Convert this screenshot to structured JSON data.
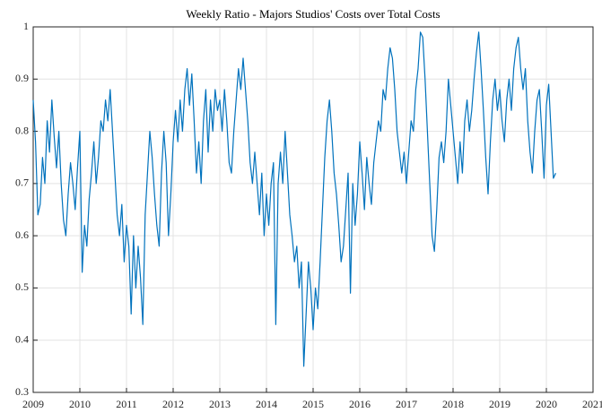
{
  "chart_data": {
    "type": "line",
    "title": "Weekly Ratio - Majors Studios' Costs over Total Costs",
    "x": [
      2009,
      2009.05,
      2009.1,
      2009.15,
      2009.2,
      2009.25,
      2009.3,
      2009.35,
      2009.4,
      2009.45,
      2009.5,
      2009.55,
      2009.6,
      2009.65,
      2009.7,
      2009.75,
      2009.8,
      2009.85,
      2009.9,
      2009.95,
      2010,
      2010.05,
      2010.1,
      2010.15,
      2010.2,
      2010.25,
      2010.3,
      2010.35,
      2010.4,
      2010.45,
      2010.5,
      2010.55,
      2010.6,
      2010.65,
      2010.7,
      2010.75,
      2010.8,
      2010.85,
      2010.9,
      2010.95,
      2011,
      2011.05,
      2011.1,
      2011.15,
      2011.2,
      2011.25,
      2011.3,
      2011.35,
      2011.4,
      2011.45,
      2011.5,
      2011.55,
      2011.6,
      2011.65,
      2011.7,
      2011.75,
      2011.8,
      2011.85,
      2011.9,
      2011.95,
      2012,
      2012.05,
      2012.1,
      2012.15,
      2012.2,
      2012.25,
      2012.3,
      2012.35,
      2012.4,
      2012.45,
      2012.5,
      2012.55,
      2012.6,
      2012.65,
      2012.7,
      2012.75,
      2012.8,
      2012.85,
      2012.9,
      2012.95,
      2013,
      2013.05,
      2013.1,
      2013.15,
      2013.2,
      2013.25,
      2013.3,
      2013.35,
      2013.4,
      2013.45,
      2013.5,
      2013.55,
      2013.6,
      2013.65,
      2013.7,
      2013.75,
      2013.8,
      2013.85,
      2013.9,
      2013.95,
      2014,
      2014.05,
      2014.1,
      2014.15,
      2014.2,
      2014.25,
      2014.3,
      2014.35,
      2014.4,
      2014.45,
      2014.5,
      2014.55,
      2014.6,
      2014.65,
      2014.7,
      2014.75,
      2014.8,
      2014.85,
      2014.9,
      2014.95,
      2015,
      2015.05,
      2015.1,
      2015.15,
      2015.2,
      2015.25,
      2015.3,
      2015.35,
      2015.4,
      2015.45,
      2015.5,
      2015.55,
      2015.6,
      2015.65,
      2015.7,
      2015.75,
      2015.8,
      2015.85,
      2015.9,
      2015.95,
      2016,
      2016.05,
      2016.1,
      2016.15,
      2016.2,
      2016.25,
      2016.3,
      2016.35,
      2016.4,
      2016.45,
      2016.5,
      2016.55,
      2016.6,
      2016.65,
      2016.7,
      2016.75,
      2016.8,
      2016.85,
      2016.9,
      2016.95,
      2017,
      2017.05,
      2017.1,
      2017.15,
      2017.2,
      2017.25,
      2017.3,
      2017.35,
      2017.4,
      2017.45,
      2017.5,
      2017.55,
      2017.6,
      2017.65,
      2017.7,
      2017.75,
      2017.8,
      2017.85,
      2017.9,
      2017.95,
      2018,
      2018.05,
      2018.1,
      2018.15,
      2018.2,
      2018.25,
      2018.3,
      2018.35,
      2018.4,
      2018.45,
      2018.5,
      2018.55,
      2018.6,
      2018.65,
      2018.7,
      2018.75,
      2018.8,
      2018.85,
      2018.9,
      2018.95,
      2019,
      2019.05,
      2019.1,
      2019.15,
      2019.2,
      2019.25,
      2019.3,
      2019.35,
      2019.4,
      2019.45,
      2019.5,
      2019.55,
      2019.6,
      2019.65,
      2019.7,
      2019.75,
      2019.8,
      2019.85,
      2019.9,
      2019.95,
      2020,
      2020.05,
      2020.1,
      2020.15,
      2020.2
    ],
    "values": [
      0.86,
      0.78,
      0.64,
      0.66,
      0.75,
      0.7,
      0.82,
      0.76,
      0.86,
      0.79,
      0.73,
      0.8,
      0.7,
      0.63,
      0.6,
      0.68,
      0.74,
      0.7,
      0.65,
      0.73,
      0.8,
      0.53,
      0.62,
      0.58,
      0.67,
      0.72,
      0.78,
      0.7,
      0.75,
      0.82,
      0.8,
      0.86,
      0.82,
      0.88,
      0.8,
      0.72,
      0.64,
      0.6,
      0.66,
      0.55,
      0.62,
      0.58,
      0.45,
      0.6,
      0.5,
      0.58,
      0.52,
      0.43,
      0.64,
      0.72,
      0.8,
      0.75,
      0.68,
      0.62,
      0.58,
      0.72,
      0.8,
      0.74,
      0.6,
      0.68,
      0.78,
      0.84,
      0.78,
      0.86,
      0.8,
      0.88,
      0.92,
      0.85,
      0.91,
      0.82,
      0.72,
      0.78,
      0.7,
      0.82,
      0.88,
      0.76,
      0.86,
      0.8,
      0.88,
      0.84,
      0.86,
      0.8,
      0.88,
      0.82,
      0.74,
      0.72,
      0.8,
      0.86,
      0.92,
      0.88,
      0.94,
      0.88,
      0.82,
      0.74,
      0.7,
      0.76,
      0.7,
      0.64,
      0.72,
      0.6,
      0.68,
      0.62,
      0.7,
      0.74,
      0.43,
      0.7,
      0.76,
      0.7,
      0.8,
      0.72,
      0.64,
      0.6,
      0.55,
      0.58,
      0.5,
      0.55,
      0.35,
      0.45,
      0.55,
      0.5,
      0.42,
      0.5,
      0.46,
      0.55,
      0.65,
      0.75,
      0.82,
      0.86,
      0.8,
      0.72,
      0.68,
      0.62,
      0.55,
      0.58,
      0.65,
      0.72,
      0.49,
      0.7,
      0.62,
      0.68,
      0.78,
      0.72,
      0.65,
      0.75,
      0.7,
      0.66,
      0.74,
      0.78,
      0.82,
      0.8,
      0.88,
      0.86,
      0.92,
      0.96,
      0.94,
      0.88,
      0.8,
      0.76,
      0.72,
      0.76,
      0.7,
      0.76,
      0.82,
      0.8,
      0.88,
      0.92,
      0.99,
      0.98,
      0.9,
      0.8,
      0.7,
      0.6,
      0.57,
      0.65,
      0.75,
      0.78,
      0.74,
      0.8,
      0.9,
      0.85,
      0.8,
      0.75,
      0.7,
      0.78,
      0.72,
      0.82,
      0.86,
      0.8,
      0.84,
      0.9,
      0.95,
      0.99,
      0.92,
      0.84,
      0.75,
      0.68,
      0.78,
      0.86,
      0.9,
      0.84,
      0.88,
      0.82,
      0.78,
      0.86,
      0.9,
      0.84,
      0.92,
      0.96,
      0.98,
      0.92,
      0.88,
      0.92,
      0.82,
      0.76,
      0.72,
      0.8,
      0.86,
      0.88,
      0.8,
      0.71,
      0.85,
      0.89,
      0.8,
      0.71,
      0.72
    ],
    "color": "#0072bd",
    "xlim": [
      2009,
      2021
    ],
    "xticks": [
      2009,
      2010,
      2011,
      2012,
      2013,
      2014,
      2015,
      2016,
      2017,
      2018,
      2019,
      2020,
      2021
    ],
    "ylim": [
      0.3,
      1
    ],
    "yticks": [
      0.3,
      0.4,
      0.5,
      0.6,
      0.7,
      0.8,
      0.9,
      1
    ],
    "grid": true
  }
}
